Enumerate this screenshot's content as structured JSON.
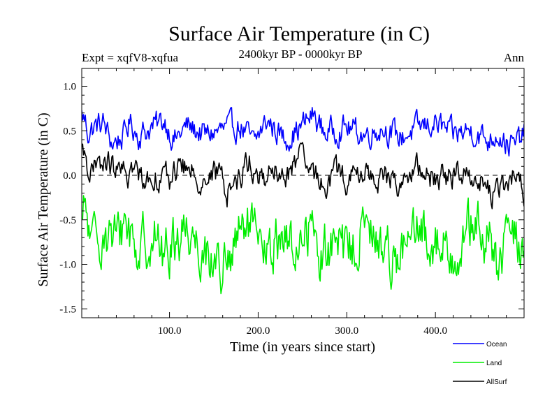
{
  "chart_data": {
    "type": "line",
    "title": "Surface Air Temperature (in C)",
    "subtitle": "2400kyr BP - 0000kyr BP",
    "left_label": "Expt = xqfV8-xqfua",
    "right_label": "Ann",
    "xlabel": "Time (in years since start)",
    "ylabel": "Surface Air Temperature (in C)",
    "xlim": [
      1,
      500
    ],
    "ylim": [
      -1.6,
      1.2
    ],
    "x_ticks": [
      100,
      200,
      300,
      400
    ],
    "x_tick_labels": [
      "100.0",
      "200.0",
      "300.0",
      "400.0"
    ],
    "y_ticks": [
      -1.5,
      -1.0,
      -0.5,
      0.0,
      0.5,
      1.0
    ],
    "y_tick_labels": [
      "-1.5",
      "-1.0",
      "-0.5",
      "0.0",
      "0.5",
      "1.0"
    ],
    "reference_line": 0.0,
    "legend_position": "bottom-right",
    "series": [
      {
        "name": "Ocean",
        "color": "#0000ff",
        "mean": 0.45,
        "amplitude": 0.12,
        "anchors": [
          [
            1,
            0.83
          ],
          [
            5,
            0.72
          ],
          [
            8,
            0.5
          ],
          [
            15,
            0.6
          ],
          [
            25,
            0.68
          ],
          [
            35,
            0.3
          ],
          [
            48,
            0.42
          ],
          [
            55,
            0.7
          ],
          [
            65,
            0.45
          ],
          [
            80,
            0.6
          ],
          [
            95,
            0.72
          ],
          [
            105,
            0.35
          ],
          [
            120,
            0.62
          ],
          [
            140,
            0.45
          ],
          [
            160,
            0.55
          ],
          [
            180,
            0.62
          ],
          [
            195,
            0.3
          ],
          [
            210,
            0.72
          ],
          [
            230,
            0.38
          ],
          [
            245,
            0.55
          ],
          [
            262,
            0.83
          ],
          [
            275,
            0.5
          ],
          [
            300,
            0.6
          ],
          [
            320,
            0.45
          ],
          [
            340,
            0.6
          ],
          [
            360,
            0.4
          ],
          [
            380,
            0.58
          ],
          [
            400,
            0.68
          ],
          [
            420,
            0.45
          ],
          [
            440,
            0.55
          ],
          [
            460,
            0.35
          ],
          [
            470,
            0.52
          ],
          [
            480,
            0.3
          ],
          [
            490,
            0.25
          ],
          [
            500,
            0.48
          ]
        ]
      },
      {
        "name": "Land",
        "color": "#00ee00",
        "mean": -0.75,
        "amplitude": 0.25,
        "anchors": [
          [
            1,
            -0.55
          ],
          [
            5,
            -0.1
          ],
          [
            12,
            -0.9
          ],
          [
            25,
            -0.5
          ],
          [
            40,
            -0.8
          ],
          [
            50,
            -0.3
          ],
          [
            65,
            -0.95
          ],
          [
            80,
            -0.55
          ],
          [
            95,
            -1.05
          ],
          [
            105,
            -0.7
          ],
          [
            120,
            -0.45
          ],
          [
            140,
            -0.95
          ],
          [
            165,
            -1.28
          ],
          [
            180,
            -0.6
          ],
          [
            190,
            -0.45
          ],
          [
            200,
            -0.9
          ],
          [
            215,
            -1.0
          ],
          [
            225,
            -0.5
          ],
          [
            240,
            -0.95
          ],
          [
            258,
            -0.4
          ],
          [
            270,
            -1.0
          ],
          [
            285,
            -0.8
          ],
          [
            300,
            -0.95
          ],
          [
            320,
            -0.5
          ],
          [
            340,
            -0.85
          ],
          [
            360,
            -1.0
          ],
          [
            380,
            -0.6
          ],
          [
            400,
            -0.75
          ],
          [
            420,
            -0.95
          ],
          [
            440,
            -0.45
          ],
          [
            460,
            -0.75
          ],
          [
            470,
            -1.22
          ],
          [
            478,
            -1.0
          ],
          [
            485,
            -0.3
          ],
          [
            492,
            -0.8
          ],
          [
            500,
            -0.85
          ]
        ]
      },
      {
        "name": "AllSurf",
        "color": "#000000",
        "mean": 0.0,
        "amplitude": 0.12,
        "anchors": [
          [
            1,
            0.38
          ],
          [
            5,
            0.45
          ],
          [
            10,
            0.05
          ],
          [
            20,
            0.12
          ],
          [
            30,
            0.25
          ],
          [
            45,
            0.0
          ],
          [
            60,
            0.08
          ],
          [
            75,
            -0.05
          ],
          [
            90,
            0.02
          ],
          [
            100,
            -0.1
          ],
          [
            110,
            0.2
          ],
          [
            125,
            0.05
          ],
          [
            140,
            -0.1
          ],
          [
            155,
            0.05
          ],
          [
            165,
            -0.3
          ],
          [
            180,
            0.0
          ],
          [
            190,
            0.3
          ],
          [
            200,
            -0.12
          ],
          [
            215,
            0.1
          ],
          [
            230,
            -0.1
          ],
          [
            245,
            0.35
          ],
          [
            260,
            0.02
          ],
          [
            275,
            -0.15
          ],
          [
            290,
            0.08
          ],
          [
            300,
            -0.1
          ],
          [
            320,
            0.05
          ],
          [
            340,
            -0.05
          ],
          [
            360,
            -0.15
          ],
          [
            380,
            0.1
          ],
          [
            400,
            -0.05
          ],
          [
            420,
            0.0
          ],
          [
            440,
            0.08
          ],
          [
            455,
            -0.2
          ],
          [
            465,
            -0.35
          ],
          [
            475,
            -0.3
          ],
          [
            485,
            -0.1
          ],
          [
            492,
            0.1
          ],
          [
            500,
            -0.32
          ]
        ]
      }
    ]
  }
}
